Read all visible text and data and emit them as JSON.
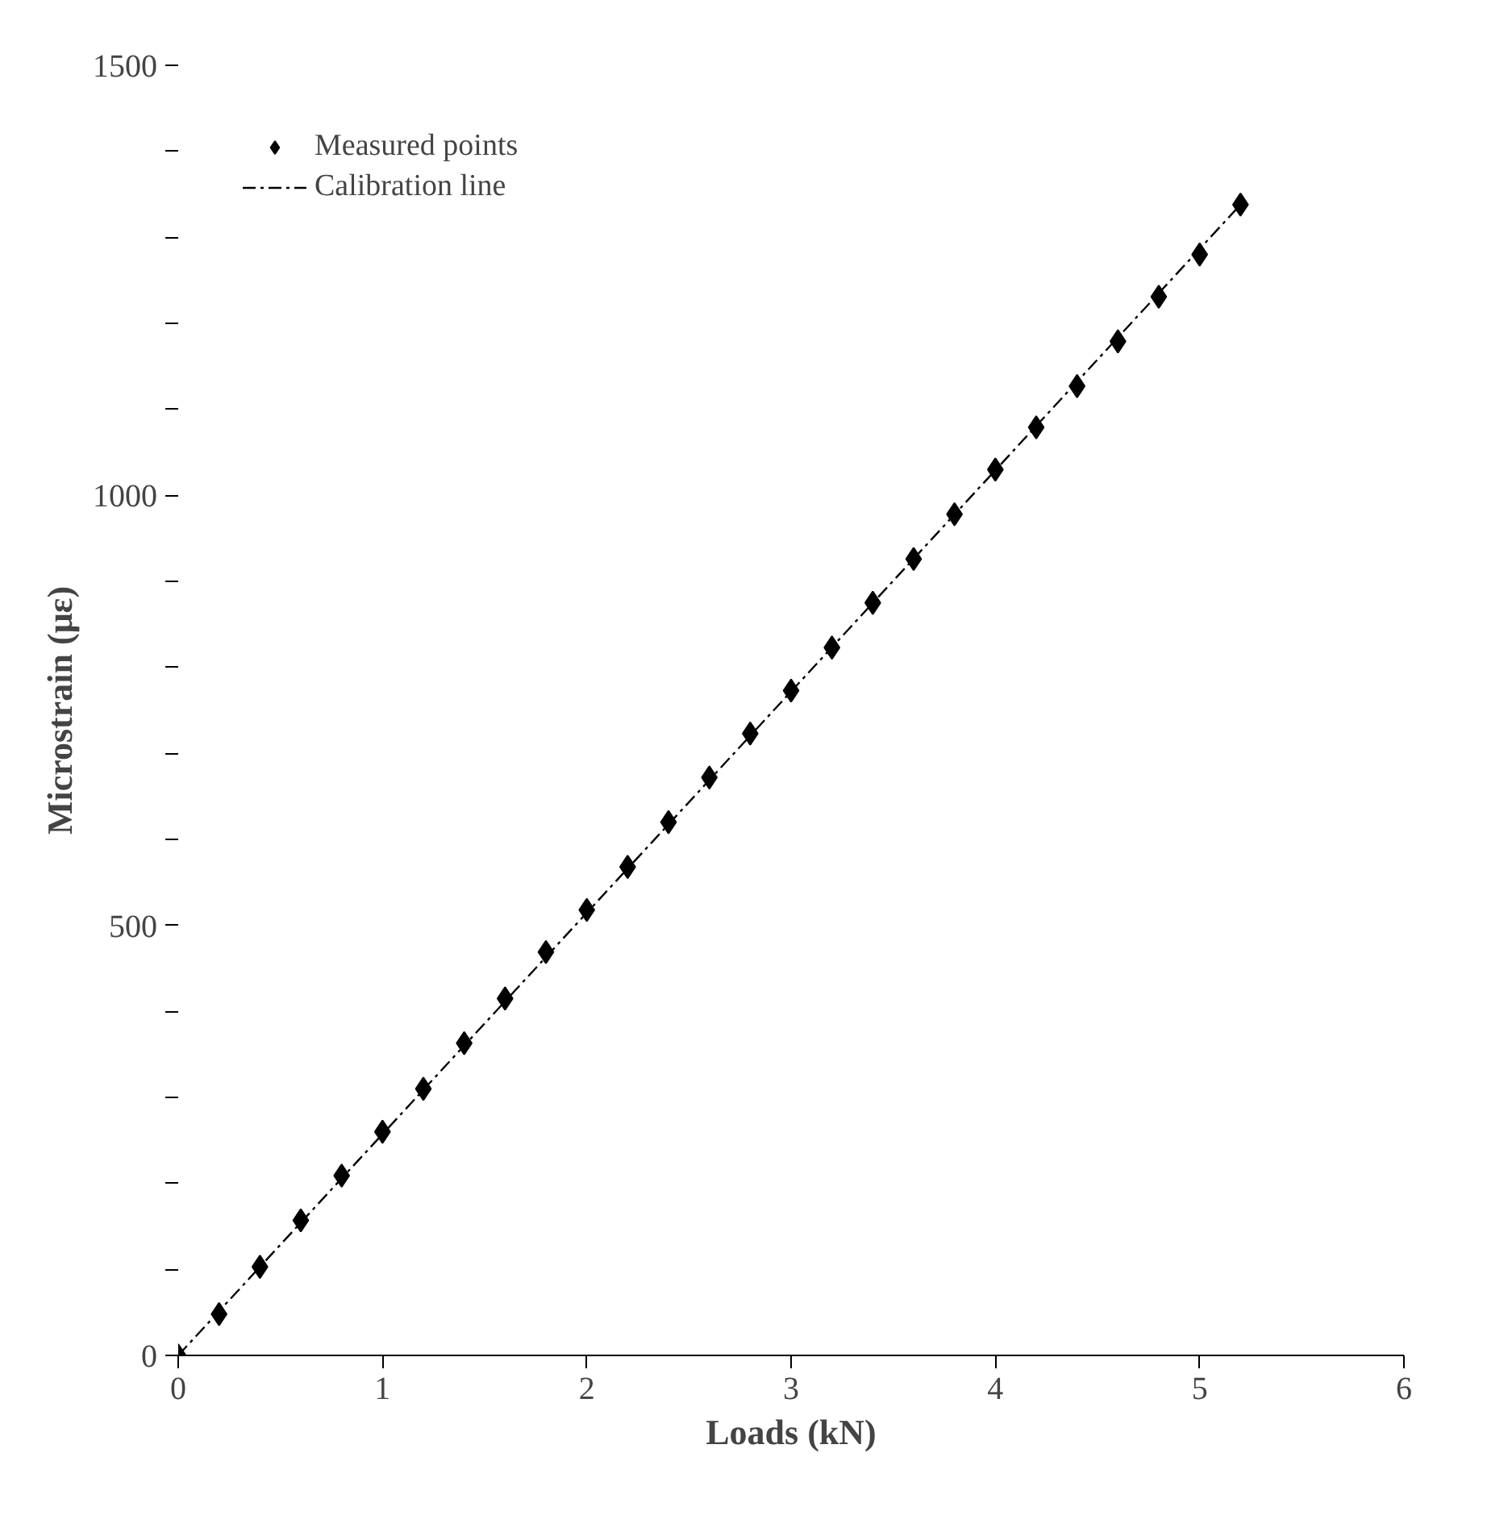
{
  "chart_data": {
    "type": "scatter",
    "xlabel": "Loads (kN)",
    "ylabel": "Microstrain (με)",
    "x": [
      0,
      0.2,
      0.4,
      0.6,
      0.8,
      1,
      1.2,
      1.4,
      1.6,
      1.8,
      2,
      2.2,
      2.4,
      2.6,
      2.8,
      3,
      3.2,
      3.4,
      3.6,
      3.8,
      4,
      4.2,
      4.4,
      4.6,
      4.8,
      5,
      5.2
    ],
    "series": [
      {
        "name": "Measured points",
        "color": "#000000",
        "marker": "diamond",
        "values": [
          0,
          48,
          103,
          157,
          209,
          260,
          310,
          363,
          415,
          469,
          518,
          568,
          620,
          672,
          723,
          773,
          823,
          875,
          926,
          978,
          1030,
          1079,
          1127,
          1179,
          1231,
          1280,
          1338
        ]
      },
      {
        "name": "Calibration line",
        "type": "line",
        "color": "#000000",
        "line_style": "dashed",
        "x": [
          0,
          5.2
        ],
        "values": [
          0,
          1338
        ]
      }
    ],
    "xlim": [
      0,
      6
    ],
    "xticks": [
      0,
      1,
      2,
      3,
      4,
      5,
      6
    ],
    "ylim": [
      0,
      1500
    ],
    "yticks": [
      0,
      {
        "value": 100,
        "label": null
      },
      {
        "value": 200,
        "label": null
      },
      {
        "value": 300,
        "label": null
      },
      {
        "value": 400,
        "label": null
      },
      500,
      {
        "value": 600,
        "label": null
      },
      {
        "value": 700,
        "label": null
      },
      {
        "value": 800,
        "label": null
      },
      {
        "value": 900,
        "label": null
      },
      1000,
      {
        "value": 1100,
        "label": null
      },
      {
        "value": 1200,
        "label": null
      },
      {
        "value": 1300,
        "label": null
      },
      {
        "value": 1400,
        "label": null
      },
      1500
    ],
    "grid": false,
    "legend": "top left"
  }
}
